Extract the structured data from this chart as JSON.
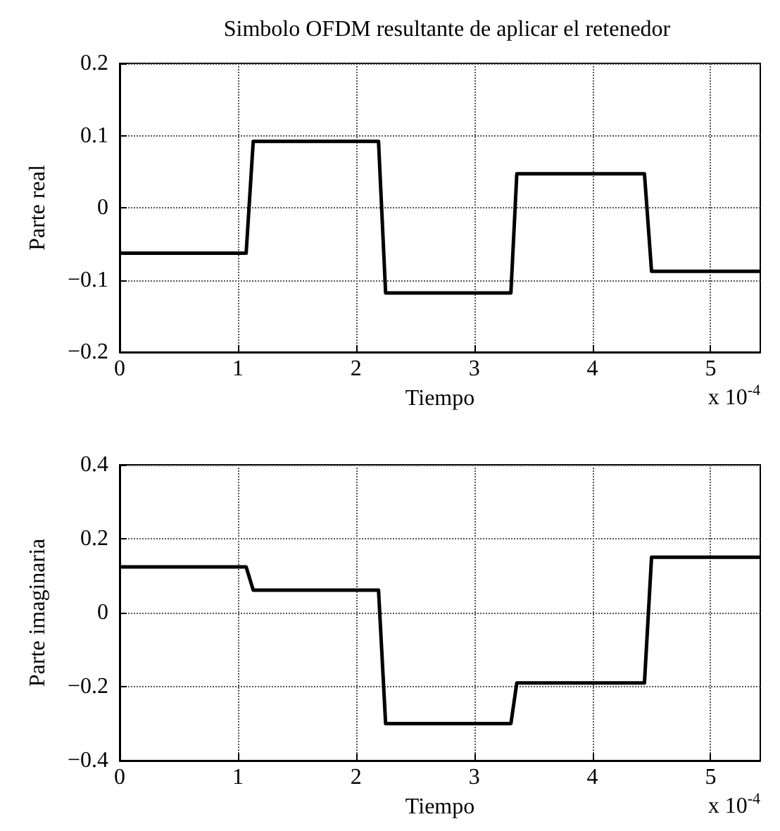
{
  "chart_data": [
    {
      "type": "line",
      "title": "Simbolo OFDM resultante de aplicar el retenedor",
      "xlabel": "Tiempo",
      "ylabel": "Parte real",
      "annotations": [
        "x 10$^{-4}$"
      ],
      "x": [
        0,
        1.07,
        1.13,
        2.19,
        2.25,
        3.31,
        3.36,
        4.44,
        4.5,
        5.42
      ],
      "series": [
        {
          "color": "#000000",
          "values": [
            -0.063,
            -0.063,
            0.092,
            0.092,
            -0.118,
            -0.118,
            0.047,
            0.047,
            -0.088,
            -0.088
          ]
        }
      ],
      "xlim": [
        0,
        5.42
      ],
      "xticks": [
        0,
        1,
        2,
        3,
        4,
        5
      ],
      "ylim": [
        -0.2,
        0.2
      ],
      "yticks": [
        {
          "value": -0.2,
          "label": "−0.2"
        },
        {
          "value": -0.1,
          "label": "−0.1"
        },
        0,
        0.1,
        0.2
      ],
      "grid": true,
      "marker": "none",
      "line_style": "solid"
    },
    {
      "type": "line",
      "xlabel": "Tiempo",
      "ylabel": "Parte imaginaria",
      "annotations": [
        "x 10$^{-4}$"
      ],
      "x": [
        0,
        1.07,
        1.13,
        2.19,
        2.25,
        3.31,
        3.36,
        4.44,
        4.5,
        5.42
      ],
      "series": [
        {
          "color": "#000000",
          "values": [
            0.124,
            0.124,
            0.061,
            0.061,
            -0.3,
            -0.3,
            -0.19,
            -0.19,
            0.15,
            0.15
          ]
        }
      ],
      "xlim": [
        0,
        5.42
      ],
      "xticks": [
        0,
        1,
        2,
        3,
        4,
        5
      ],
      "ylim": [
        -0.4,
        0.4
      ],
      "yticks": [
        {
          "value": -0.4,
          "label": "−0.4"
        },
        {
          "value": -0.2,
          "label": "−0.2"
        },
        0,
        0.2,
        0.4
      ],
      "grid": true,
      "marker": "none",
      "line_style": "solid"
    }
  ]
}
